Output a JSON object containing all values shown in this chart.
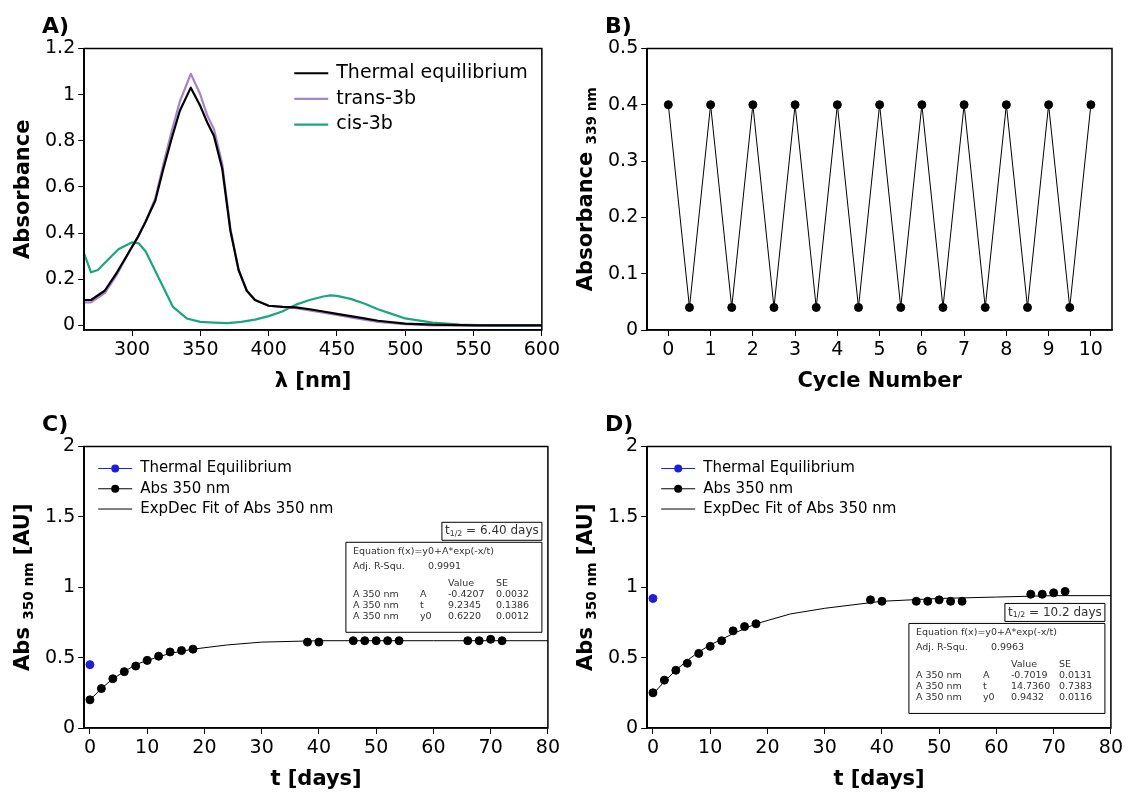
{
  "chart_data": [
    {
      "type": "line",
      "title": "A)",
      "xlabel": "λ [nm]",
      "ylabel": "Absorbance",
      "xlim": [
        265,
        600
      ],
      "xticks": [
        300,
        350,
        400,
        450,
        500,
        550,
        600
      ],
      "ylim": [
        -0.02,
        1.2
      ],
      "yticks": [
        0,
        0.2,
        0.4,
        0.6,
        0.8,
        1,
        1.2
      ],
      "legend": "top right",
      "grid": false,
      "marker": "none",
      "series": [
        {
          "name": "Thermal equilibrium",
          "color": "#000000",
          "x": [
            265,
            270,
            280,
            289,
            298,
            304,
            310,
            317,
            323,
            329,
            335,
            343,
            350,
            355,
            360,
            366,
            372,
            378,
            384,
            390,
            400,
            410,
            420,
            430,
            440,
            450,
            460,
            470,
            480,
            500,
            520,
            550,
            600
          ],
          "values": [
            0.11,
            0.11,
            0.15,
            0.23,
            0.32,
            0.38,
            0.45,
            0.54,
            0.68,
            0.81,
            0.93,
            1.03,
            0.95,
            0.88,
            0.82,
            0.68,
            0.41,
            0.24,
            0.15,
            0.11,
            0.085,
            0.08,
            0.078,
            0.07,
            0.06,
            0.05,
            0.04,
            0.03,
            0.02,
            0.008,
            0.003,
            0,
            0
          ]
        },
        {
          "name": "trans-3b",
          "color": "#a385c9",
          "x": [
            265,
            270,
            280,
            289,
            298,
            304,
            310,
            317,
            323,
            329,
            335,
            343,
            350,
            355,
            360,
            366,
            372,
            378,
            384,
            390,
            400,
            410,
            420,
            430,
            440,
            450,
            460,
            470,
            480,
            500,
            520,
            550,
            600
          ],
          "values": [
            0.1,
            0.1,
            0.14,
            0.22,
            0.32,
            0.38,
            0.45,
            0.55,
            0.7,
            0.84,
            0.97,
            1.09,
            1.0,
            0.91,
            0.85,
            0.7,
            0.42,
            0.24,
            0.15,
            0.11,
            0.085,
            0.08,
            0.075,
            0.065,
            0.055,
            0.045,
            0.035,
            0.025,
            0.015,
            0.005,
            0,
            0,
            0
          ]
        },
        {
          "name": "cis-3b",
          "color": "#1aa67f",
          "x": [
            265,
            270,
            275,
            280,
            290,
            300,
            305,
            310,
            320,
            330,
            340,
            350,
            360,
            370,
            380,
            390,
            400,
            410,
            420,
            430,
            440,
            445,
            450,
            460,
            470,
            480,
            490,
            500,
            520,
            540,
            560,
            600
          ],
          "values": [
            0.31,
            0.23,
            0.24,
            0.27,
            0.33,
            0.36,
            0.355,
            0.32,
            0.2,
            0.08,
            0.03,
            0.015,
            0.012,
            0.01,
            0.015,
            0.025,
            0.04,
            0.06,
            0.09,
            0.11,
            0.125,
            0.13,
            0.128,
            0.115,
            0.095,
            0.07,
            0.05,
            0.03,
            0.012,
            0.003,
            0,
            0
          ]
        }
      ]
    },
    {
      "type": "line",
      "title": "B)",
      "xlabel": "Cycle Number",
      "ylabel": "Absorbance $_{339 nm}$",
      "xlim": [
        -0.5,
        10.5
      ],
      "xticks": [
        0,
        1,
        2,
        3,
        4,
        5,
        6,
        7,
        8,
        9,
        10
      ],
      "ylim": [
        0,
        0.5
      ],
      "yticks": [
        0,
        0.1,
        0.2,
        0.3,
        0.4,
        0.5
      ],
      "grid": false,
      "marker": "circle",
      "series": [
        {
          "color": "#000000",
          "x": [
            0,
            0.5,
            1,
            1.5,
            2,
            2.5,
            3,
            3.5,
            4,
            4.5,
            5,
            5.5,
            6,
            6.5,
            7,
            7.5,
            8,
            8.5,
            9,
            9.5,
            10
          ],
          "values": [
            0.4,
            0.04,
            0.4,
            0.04,
            0.4,
            0.04,
            0.4,
            0.04,
            0.4,
            0.04,
            0.4,
            0.04,
            0.4,
            0.04,
            0.4,
            0.04,
            0.4,
            0.04,
            0.4,
            0.04,
            0.4
          ]
        }
      ]
    },
    {
      "type": "scatter",
      "title": "C)",
      "xlabel": "t [days]",
      "ylabel": "Abs $_{350 nm}$ [AU]",
      "xlim": [
        -1,
        80
      ],
      "xticks": [
        0,
        10,
        20,
        30,
        40,
        50,
        60,
        70,
        80
      ],
      "ylim": [
        0,
        2
      ],
      "yticks": [
        0,
        0.5,
        1,
        1.5,
        2
      ],
      "legend": "top left",
      "grid": false,
      "marker": "circle",
      "annotations": [
        "t$_{1/2}$ = 6.40 days",
        "Equation f(x)=y0+A*exp(-x/t)",
        "Adj. R-Squ.\t\t0.9991",
        "\t\tValue\tSE",
        "A 350 nm\tA\t-0.4207\t0.0032",
        "A 350 nm\tt\t9.2345\t0.1386",
        "A 350 nm\ty0\t0.6220\t0.0012"
      ],
      "series": [
        {
          "name": "Thermal Equilibrium",
          "color": "#1f1fd6",
          "x": [
            0
          ],
          "values": [
            0.45
          ]
        },
        {
          "name": "Abs 350 nm",
          "color": "#000000",
          "x": [
            0,
            2,
            4,
            6,
            8,
            10,
            12,
            14,
            16,
            18,
            38,
            40,
            46,
            48,
            50,
            52,
            54,
            66,
            68,
            70,
            72
          ],
          "values": [
            0.2,
            0.28,
            0.35,
            0.4,
            0.44,
            0.48,
            0.51,
            0.54,
            0.55,
            0.56,
            0.61,
            0.61,
            0.62,
            0.62,
            0.62,
            0.62,
            0.62,
            0.62,
            0.62,
            0.63,
            0.62
          ]
        },
        {
          "name": "ExpDec Fit of Abs 350 nm",
          "type": "line",
          "marker": "none",
          "color": "#000000",
          "x": [
            0,
            2,
            4,
            6,
            8,
            10,
            14,
            18,
            24,
            30,
            40,
            50,
            60,
            80
          ],
          "values": [
            0.2,
            0.28,
            0.35,
            0.4,
            0.45,
            0.48,
            0.53,
            0.56,
            0.59,
            0.61,
            0.62,
            0.62,
            0.62,
            0.62
          ]
        }
      ]
    },
    {
      "type": "scatter",
      "title": "D)",
      "xlabel": "t [days]",
      "ylabel": "Abs $_{350 nm}$ [AU]",
      "xlim": [
        -1,
        80
      ],
      "xticks": [
        0,
        10,
        20,
        30,
        40,
        50,
        60,
        70,
        80
      ],
      "ylim": [
        0,
        2
      ],
      "yticks": [
        0,
        0.5,
        1,
        1.5,
        2
      ],
      "legend": "top left",
      "grid": false,
      "marker": "circle",
      "annotations": [
        "t$_{1/2}$ = 10.2 days",
        "Equation f(x)=y0+A*exp(-x/t)",
        "Adj. R-Squ.\t\t0.9963",
        "\t\tValue\tSE",
        "A 350 nm\tA\t-0.7019\t0.0131",
        "A 350 nm\tt\t14.7360\t0.7383",
        "A 350 nm\ty0\t0.9432\t0.0116"
      ],
      "series": [
        {
          "name": "Thermal Equilibrium",
          "color": "#1f1fd6",
          "x": [
            0
          ],
          "values": [
            0.92
          ]
        },
        {
          "name": "Abs 350 nm",
          "color": "#000000",
          "x": [
            0,
            2,
            4,
            6,
            8,
            10,
            12,
            14,
            16,
            18,
            38,
            40,
            46,
            48,
            50,
            52,
            54,
            66,
            68,
            70,
            72
          ],
          "values": [
            0.25,
            0.34,
            0.41,
            0.46,
            0.53,
            0.58,
            0.62,
            0.69,
            0.72,
            0.74,
            0.91,
            0.9,
            0.9,
            0.9,
            0.91,
            0.9,
            0.9,
            0.95,
            0.95,
            0.96,
            0.97
          ]
        },
        {
          "name": "ExpDec Fit of Abs 350 nm",
          "type": "line",
          "marker": "none",
          "color": "#000000",
          "x": [
            0,
            2,
            4,
            6,
            8,
            10,
            14,
            18,
            24,
            30,
            40,
            50,
            60,
            70,
            80
          ],
          "values": [
            0.24,
            0.33,
            0.41,
            0.48,
            0.54,
            0.59,
            0.67,
            0.74,
            0.81,
            0.85,
            0.9,
            0.92,
            0.93,
            0.94,
            0.94
          ]
        }
      ]
    }
  ]
}
